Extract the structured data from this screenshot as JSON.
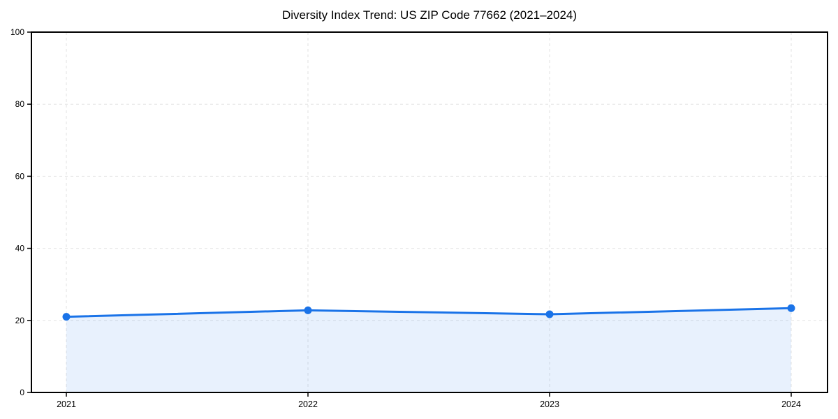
{
  "chart_data": {
    "type": "area",
    "title": "Diversity Index Trend: US ZIP Code 77662 (2021–2024)",
    "series_name": "Diversity Index",
    "categories": [
      "2021",
      "2022",
      "2023",
      "2024"
    ],
    "x": [
      2021,
      2022,
      2023,
      2024
    ],
    "values": [
      21.0,
      22.8,
      21.7,
      23.4
    ],
    "xlabel": "",
    "ylabel": "",
    "ylim": [
      0,
      100
    ],
    "yticks": [
      0,
      20,
      40,
      60,
      80,
      100
    ],
    "grid": "dashed-both-axes",
    "legend_position": "none",
    "colors": {
      "line": "#1a73e8",
      "marker": "#1a73e8",
      "fill": "rgba(26,115,232,0.10)",
      "grid": "#e2e2e2",
      "spine": "#000000",
      "tick_text": "#000000",
      "background": "#ffffff"
    }
  }
}
